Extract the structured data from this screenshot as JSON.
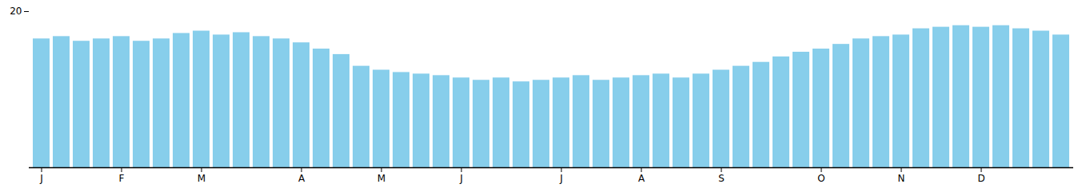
{
  "chart_data": {
    "type": "bar",
    "categories": [
      "J",
      null,
      null,
      null,
      "F",
      null,
      null,
      null,
      "M",
      null,
      null,
      null,
      null,
      "A",
      null,
      null,
      null,
      "M",
      null,
      null,
      null,
      "J",
      null,
      null,
      null,
      null,
      "J",
      null,
      null,
      null,
      "A",
      null,
      null,
      null,
      "S",
      null,
      null,
      null,
      null,
      "O",
      null,
      null,
      null,
      "N",
      null,
      null,
      null,
      "D",
      null,
      null,
      null,
      null
    ],
    "values": [
      16.5,
      16.8,
      16.2,
      16.5,
      16.8,
      16.2,
      16.5,
      17.2,
      17.5,
      17.0,
      17.3,
      16.8,
      16.5,
      16.0,
      15.2,
      14.5,
      13.0,
      12.5,
      12.2,
      12.0,
      11.8,
      11.5,
      11.2,
      11.5,
      11.0,
      11.2,
      11.5,
      11.8,
      11.2,
      11.5,
      11.8,
      12.0,
      11.5,
      12.0,
      12.5,
      13.0,
      13.5,
      14.2,
      14.8,
      15.2,
      15.8,
      16.5,
      16.8,
      17.0,
      17.8,
      18.0,
      18.2,
      18.0,
      18.2,
      17.8,
      17.5,
      17.0
    ],
    "color": "#87CEEB",
    "ylim": [
      0,
      20
    ],
    "yticks": [
      20
    ],
    "grid": false
  }
}
